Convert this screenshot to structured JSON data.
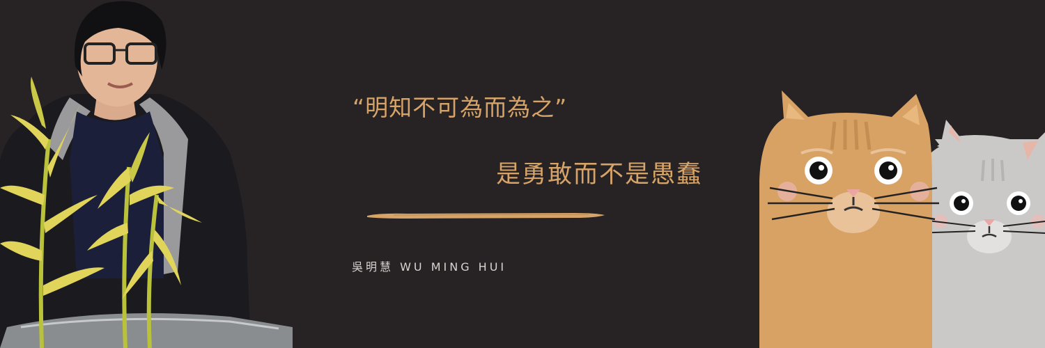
{
  "quote": {
    "line1": "“明知不可為而為之”",
    "line2": "是勇敢而不是愚蠢"
  },
  "author": {
    "name": "吳明慧  WU MING HUI"
  },
  "colors": {
    "background": "#272223",
    "accent": "#d6a468",
    "name_text": "#d9d5d2",
    "orange_cat": "#d8a265",
    "gray_cat": "#cbc9c8"
  },
  "icons": {
    "photo": "person-with-plant-photo",
    "cats": "two-cats-illustration",
    "divider": "brush-stroke-divider"
  }
}
